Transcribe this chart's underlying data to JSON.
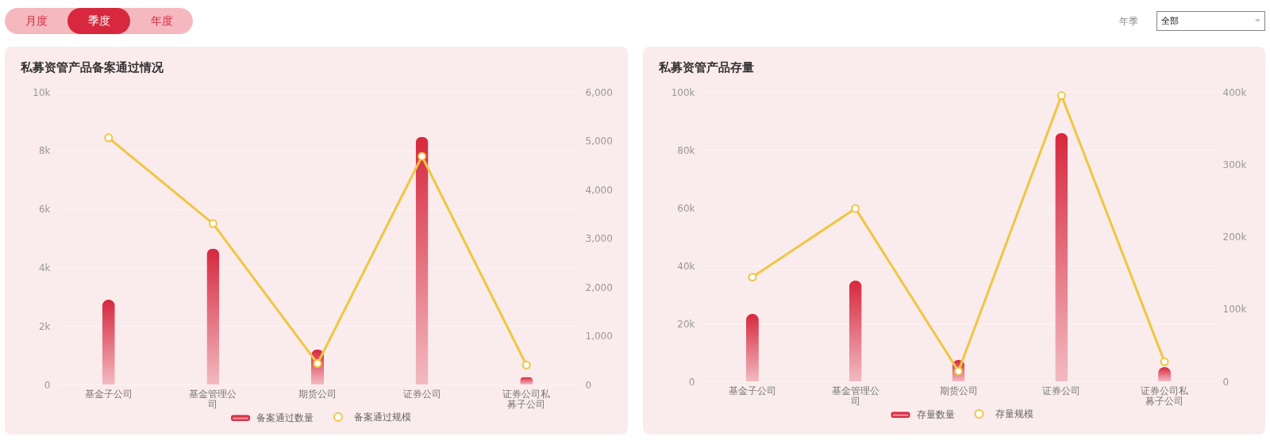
{
  "chart_data": [
    {
      "type": "other",
      "annotations": [
        "月度",
        "季度",
        "年度",
        "年季",
        "全部"
      ]
    },
    {
      "type": "bar",
      "title": "私募资管产品备案通过情况",
      "categories": [
        "基金子公司",
        "基金管理公司",
        "期货公司",
        "证券公司",
        "证券公司私募子公司"
      ],
      "series": [
        {
          "name": "备案通过数量",
          "color": "#d6283e",
          "values": [
            2900,
            4650,
            1200,
            8470,
            260
          ]
        },
        {
          "name": "备案通过规模",
          "type": "line",
          "axis": "y2",
          "color": "#efc641",
          "values": [
            5060,
            3300,
            430,
            4680,
            400
          ]
        }
      ],
      "ylim": [
        0,
        10000
      ],
      "yticks": [
        0,
        {
          "value": 2000,
          "label": "2k"
        },
        {
          "value": 4000,
          "label": "4k"
        },
        {
          "value": 6000,
          "label": "6k"
        },
        {
          "value": 8000,
          "label": "8k"
        },
        {
          "value": 10000,
          "label": "10k"
        }
      ],
      "y2lim": [
        0,
        6000
      ],
      "y2ticks": [
        0,
        {
          "value": 1000,
          "label": "1,000"
        },
        {
          "value": 2000,
          "label": "2,000"
        },
        {
          "value": 3000,
          "label": "3,000"
        },
        {
          "value": 4000,
          "label": "4,000"
        },
        {
          "value": 5000,
          "label": "5,000"
        },
        {
          "value": 6000,
          "label": "6,000"
        }
      ],
      "grid": "y",
      "legend": "bottom",
      "marker": "circle"
    },
    {
      "type": "bar",
      "title": "私募资管产品存量",
      "categories": [
        "基金子公司",
        "基金管理公司",
        "期货公司",
        "证券公司",
        "证券公司私募子公司"
      ],
      "series": [
        {
          "name": "存量数量",
          "color": "#d6283e",
          "values": [
            23300,
            34800,
            7400,
            85800,
            4900
          ]
        },
        {
          "name": "存量规模",
          "type": "line",
          "axis": "y2",
          "color": "#efc641",
          "values": [
            144000,
            239000,
            14000,
            395000,
            27000
          ]
        }
      ],
      "ylim": [
        0,
        100000
      ],
      "yticks": [
        0,
        {
          "value": 20000,
          "label": "20k"
        },
        {
          "value": 40000,
          "label": "40k"
        },
        {
          "value": 60000,
          "label": "60k"
        },
        {
          "value": 80000,
          "label": "80k"
        },
        {
          "value": 100000,
          "label": "100k"
        }
      ],
      "y2lim": [
        0,
        400000
      ],
      "y2ticks": [
        0,
        {
          "value": 100000,
          "label": "100k"
        },
        {
          "value": 200000,
          "label": "200k"
        },
        {
          "value": 300000,
          "label": "300k"
        },
        {
          "value": 400000,
          "label": "400k"
        }
      ],
      "grid": "y",
      "legend": "bottom",
      "marker": "circle"
    }
  ]
}
